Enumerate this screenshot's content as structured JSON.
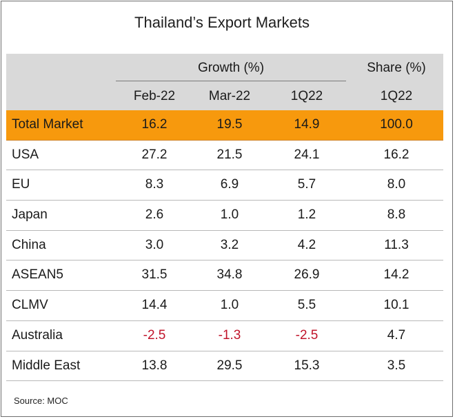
{
  "title": "Thailand’s Export Markets",
  "header": {
    "growth_group": "Growth (%)",
    "share_group": "Share (%)",
    "columns": [
      "Feb-22",
      "Mar-22",
      "1Q22",
      "1Q22"
    ]
  },
  "rows": [
    {
      "name": "Total Market",
      "values": [
        "16.2",
        "19.5",
        "14.9",
        "100.0"
      ],
      "highlight": true
    },
    {
      "name": "USA",
      "values": [
        "27.2",
        "21.5",
        "24.1",
        "16.2"
      ]
    },
    {
      "name": "EU",
      "values": [
        "8.3",
        "6.9",
        "5.7",
        "8.0"
      ]
    },
    {
      "name": "Japan",
      "values": [
        "2.6",
        "1.0",
        "1.2",
        "8.8"
      ]
    },
    {
      "name": "China",
      "values": [
        "3.0",
        "3.2",
        "4.2",
        "11.3"
      ]
    },
    {
      "name": "ASEAN5",
      "values": [
        "31.5",
        "34.8",
        "26.9",
        "14.2"
      ]
    },
    {
      "name": "CLMV",
      "values": [
        "14.4",
        "1.0",
        "5.5",
        "10.1"
      ]
    },
    {
      "name": "Australia",
      "values": [
        "-2.5",
        "-1.3",
        "-2.5",
        "4.7"
      ]
    },
    {
      "name": "Middle East",
      "values": [
        "13.8",
        "29.5",
        "15.3",
        "3.5"
      ]
    }
  ],
  "source": "Source: MOC",
  "colors": {
    "highlight": "#f7990d",
    "header": "#d9d9d9",
    "negative": "#c0142a"
  }
}
